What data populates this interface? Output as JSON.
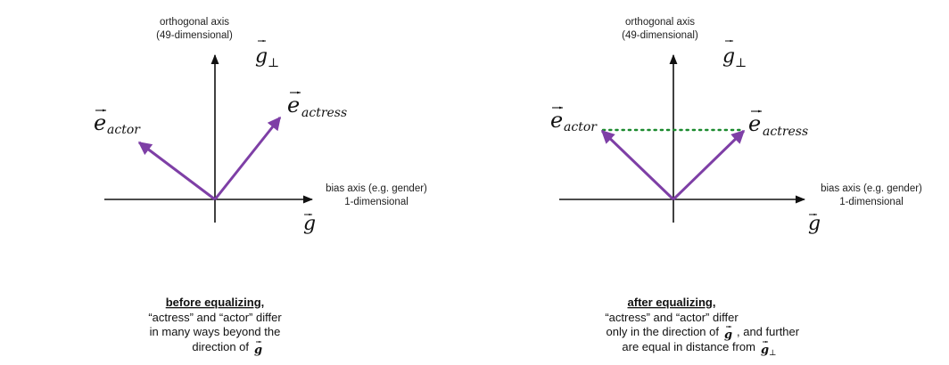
{
  "colors": {
    "axis": "#111111",
    "vector": "#7e3fa6",
    "distance_line": "#1b8a2e"
  },
  "panels": [
    {
      "id": "before",
      "orthogonal_axis_label_1": "orthogonal axis",
      "orthogonal_axis_label_2": "(49-dimensional)",
      "orthogonal_vector_symbol": "g",
      "orthogonal_vector_subscript": "⊥",
      "bias_axis_label_1": "bias axis (e.g. gender)",
      "bias_axis_label_2": "1-dimensional",
      "bias_vector_symbol": "g",
      "vector_left_symbol": "e",
      "vector_left_subscript": "actor",
      "vector_right_symbol": "e",
      "vector_right_subscript": "actress",
      "caption_title": "before equalizing,",
      "caption_line_1": "“actress” and “actor” differ",
      "caption_line_2": "in many ways beyond the",
      "caption_line_3_text": "direction of",
      "caption_line_3_symbol": "g"
    },
    {
      "id": "after",
      "orthogonal_axis_label_1": "orthogonal axis",
      "orthogonal_axis_label_2": "(49-dimensional)",
      "orthogonal_vector_symbol": "g",
      "orthogonal_vector_subscript": "⊥",
      "bias_axis_label_1": "bias axis (e.g. gender)",
      "bias_axis_label_2": "1-dimensional",
      "bias_vector_symbol": "g",
      "vector_left_symbol": "e",
      "vector_left_subscript": "actor",
      "vector_right_symbol": "e",
      "vector_right_subscript": "actress",
      "caption_title": "after equalizing,",
      "caption_line_1": "“actress” and “actor” differ",
      "caption_line_2_text_a": "only in the direction of",
      "caption_line_2_symbol": "g",
      "caption_line_2_text_b": ", and further",
      "caption_line_3_text": "are equal in distance from",
      "caption_line_3_symbol": "g",
      "caption_line_3_subscript": "⊥"
    }
  ]
}
